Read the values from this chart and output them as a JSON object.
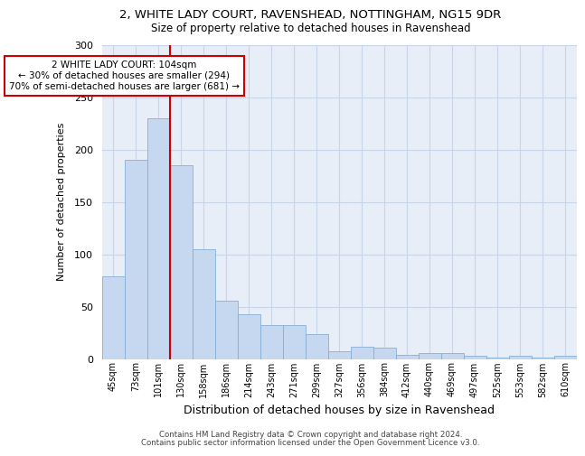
{
  "title_line1": "2, WHITE LADY COURT, RAVENSHEAD, NOTTINGHAM, NG15 9DR",
  "title_line2": "Size of property relative to detached houses in Ravenshead",
  "xlabel": "Distribution of detached houses by size in Ravenshead",
  "ylabel": "Number of detached properties",
  "categories": [
    "45sqm",
    "73sqm",
    "101sqm",
    "130sqm",
    "158sqm",
    "186sqm",
    "214sqm",
    "243sqm",
    "271sqm",
    "299sqm",
    "327sqm",
    "356sqm",
    "384sqm",
    "412sqm",
    "440sqm",
    "469sqm",
    "497sqm",
    "525sqm",
    "553sqm",
    "582sqm",
    "610sqm"
  ],
  "values": [
    79,
    190,
    230,
    185,
    105,
    56,
    43,
    32,
    32,
    24,
    7,
    12,
    11,
    4,
    6,
    6,
    3,
    1,
    3,
    1,
    3
  ],
  "bar_color": "#c5d8f0",
  "bar_edge_color": "#85afd4",
  "property_bin_index": 2,
  "annotation_text": "2 WHITE LADY COURT: 104sqm\n← 30% of detached houses are smaller (294)\n70% of semi-detached houses are larger (681) →",
  "annotation_box_color": "white",
  "annotation_box_edge_color": "#cc0000",
  "vline_color": "#cc0000",
  "ylim": [
    0,
    300
  ],
  "yticks": [
    0,
    50,
    100,
    150,
    200,
    250,
    300
  ],
  "footer_line1": "Contains HM Land Registry data © Crown copyright and database right 2024.",
  "footer_line2": "Contains public sector information licensed under the Open Government Licence v3.0.",
  "bg_color": "#ffffff",
  "plot_bg_color": "#e8eef8",
  "grid_color": "#c8d4e8"
}
